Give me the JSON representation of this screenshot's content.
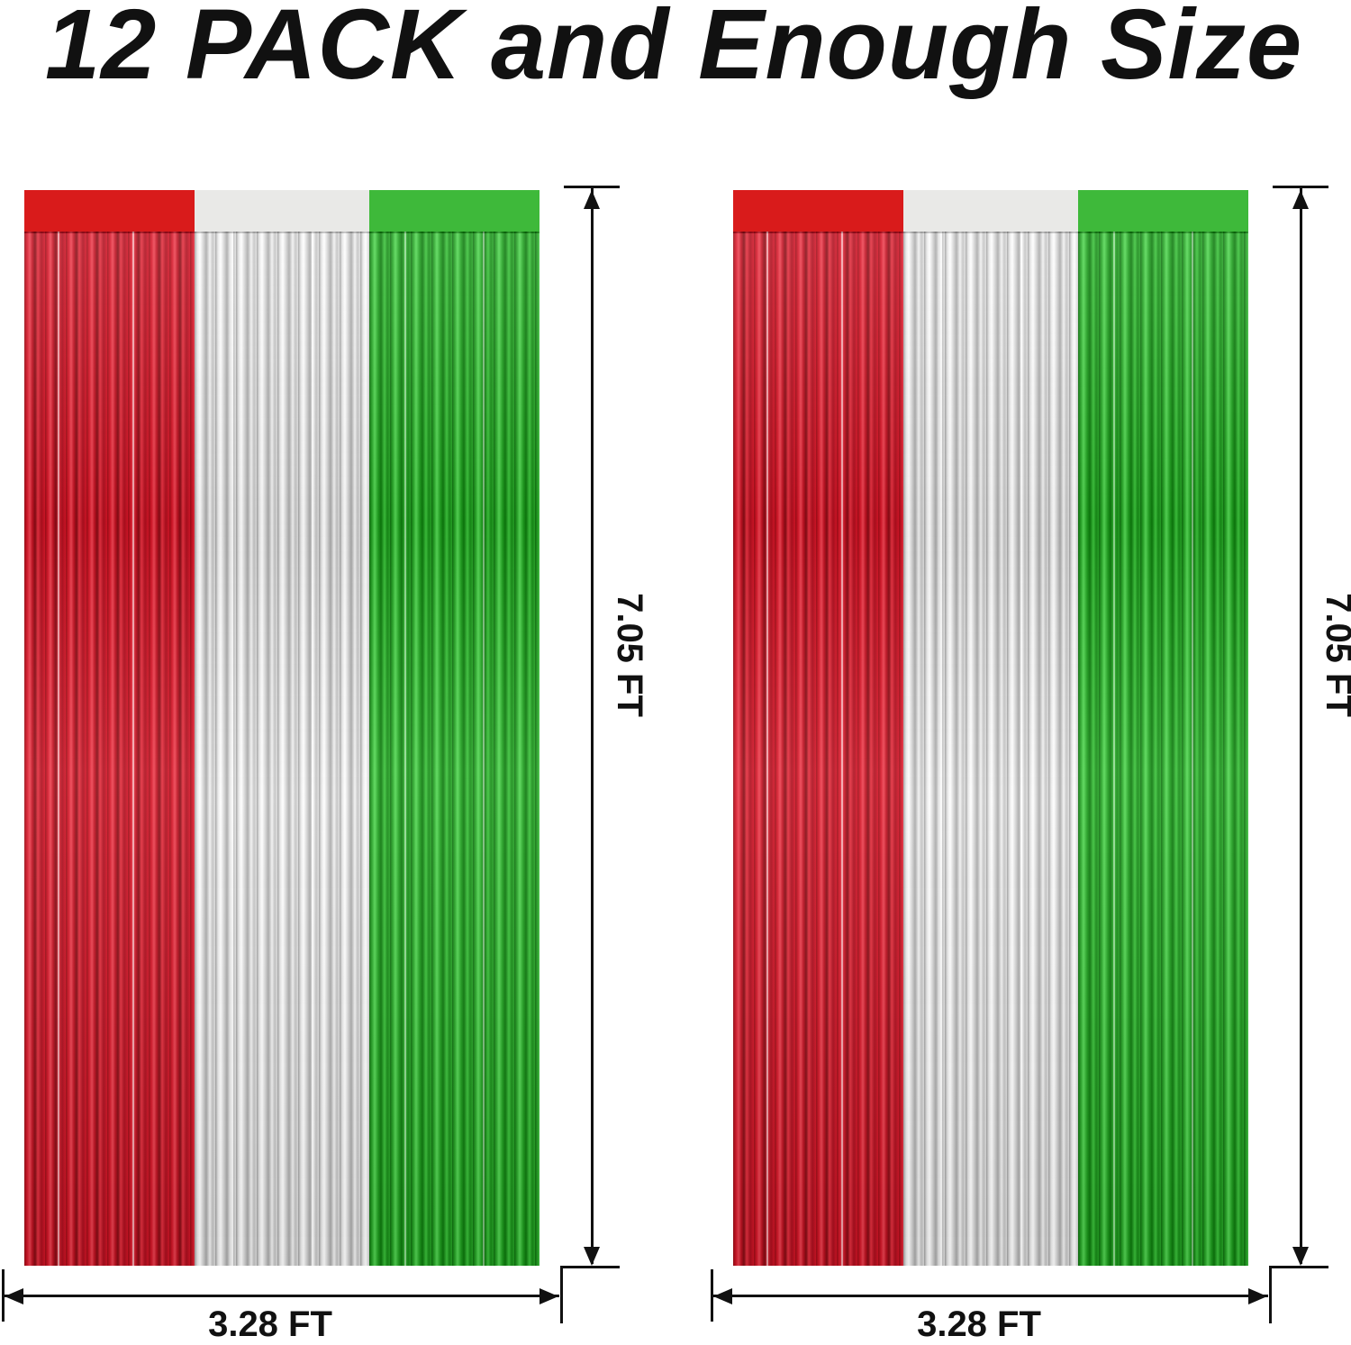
{
  "headline": "12 PACK and Enough Size",
  "colors": {
    "band_red": "#D91B1B",
    "band_silver": "#E9E9E7",
    "band_green": "#3EB93A",
    "dimension_line": "#111111"
  },
  "panels": [
    {
      "height_label": "7.05 FT",
      "width_label": "3.28 FT"
    },
    {
      "height_label": "7.05 FT",
      "width_label": "3.28 FT"
    }
  ]
}
